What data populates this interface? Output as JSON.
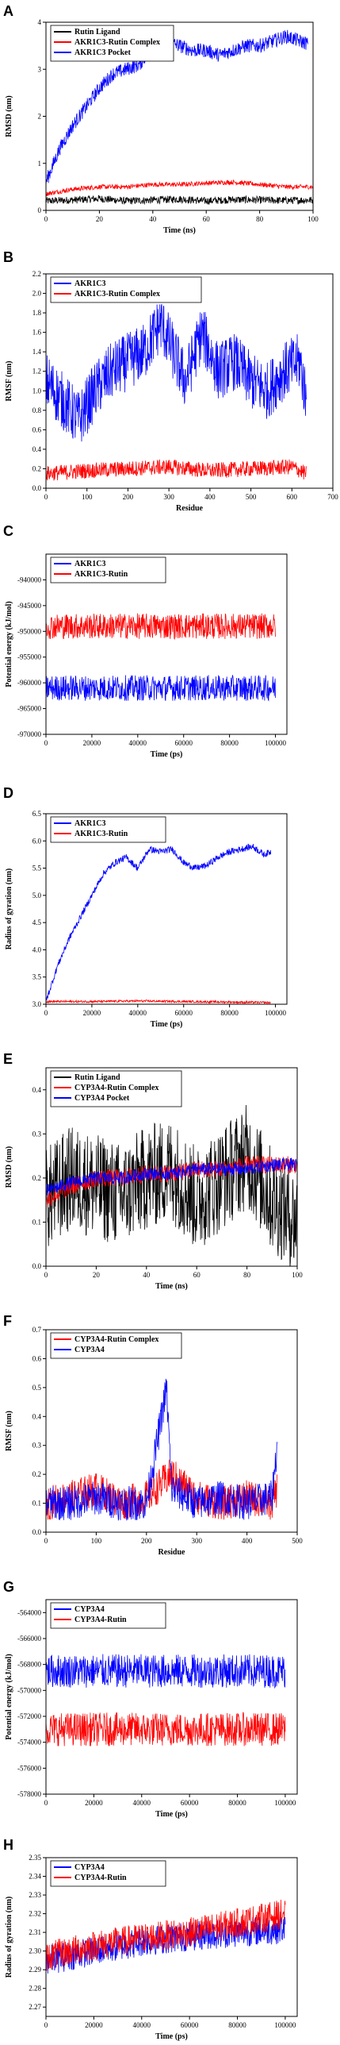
{
  "colors": {
    "black": "#000000",
    "red": "#ff0000",
    "blue": "#0000ff"
  },
  "chart_data": [
    {
      "panel": "A",
      "type": "line",
      "xlabel": "Time (ns)",
      "ylabel": "RMSD (nm)",
      "xlim": [
        0,
        100
      ],
      "ylim": [
        0,
        4
      ],
      "xticks": [
        0,
        20,
        40,
        60,
        80,
        100
      ],
      "yticks": [
        0,
        1,
        2,
        3,
        4
      ],
      "legend": [
        "Rutin Ligand",
        "AKR1C3-Rutin Complex",
        "AKR1C3 Pocket"
      ],
      "series": [
        {
          "name": "Rutin Ligand",
          "color": "#000000",
          "x": [
            0,
            10,
            20,
            30,
            40,
            50,
            60,
            70,
            80,
            90,
            100
          ],
          "y": [
            0.2,
            0.22,
            0.25,
            0.2,
            0.22,
            0.24,
            0.2,
            0.23,
            0.22,
            0.21,
            0.22
          ],
          "noise": 0.08
        },
        {
          "name": "AKR1C3-Rutin Complex",
          "color": "#ff0000",
          "x": [
            0,
            10,
            20,
            30,
            40,
            50,
            60,
            70,
            80,
            90,
            100
          ],
          "y": [
            0.35,
            0.45,
            0.5,
            0.5,
            0.55,
            0.55,
            0.58,
            0.6,
            0.55,
            0.5,
            0.5
          ],
          "noise": 0.05
        },
        {
          "name": "AKR1C3 Pocket",
          "color": "#0000ff",
          "x": [
            0,
            5,
            10,
            15,
            20,
            25,
            30,
            35,
            40,
            45,
            50,
            55,
            60,
            65,
            70,
            75,
            80,
            85,
            90,
            95,
            98
          ],
          "y": [
            0.6,
            1.3,
            1.8,
            2.2,
            2.6,
            2.9,
            3.0,
            3.1,
            3.5,
            3.6,
            3.5,
            3.4,
            3.4,
            3.3,
            3.4,
            3.5,
            3.5,
            3.6,
            3.7,
            3.6,
            3.55
          ],
          "noise": 0.15
        }
      ]
    },
    {
      "panel": "B",
      "type": "line",
      "xlabel": "Residue",
      "ylabel": "RMSF (nm)",
      "xlim": [
        0,
        700
      ],
      "ylim": [
        0,
        2.2
      ],
      "xticks": [
        0,
        100,
        200,
        300,
        400,
        500,
        600,
        700
      ],
      "yticks": [
        0.0,
        0.2,
        0.4,
        0.6,
        0.8,
        1.0,
        1.2,
        1.4,
        1.6,
        1.8,
        2.0,
        2.2
      ],
      "legend": [
        "AKR1C3",
        "AKR1C3-Rutin Complex"
      ],
      "series": [
        {
          "name": "AKR1C3",
          "color": "#0000ff",
          "x": [
            0,
            40,
            80,
            120,
            160,
            200,
            240,
            280,
            300,
            340,
            380,
            420,
            460,
            500,
            540,
            580,
            620,
            635
          ],
          "y": [
            1.1,
            0.9,
            0.7,
            1.0,
            1.2,
            1.3,
            1.4,
            1.7,
            1.5,
            1.1,
            1.6,
            1.2,
            1.3,
            1.1,
            1.0,
            1.2,
            1.3,
            0.9
          ],
          "noise": 0.3
        },
        {
          "name": "AKR1C3-Rutin Complex",
          "color": "#ff0000",
          "x": [
            0,
            100,
            200,
            300,
            400,
            500,
            600,
            635
          ],
          "y": [
            0.15,
            0.18,
            0.2,
            0.22,
            0.18,
            0.2,
            0.22,
            0.15
          ],
          "noise": 0.08
        }
      ]
    },
    {
      "panel": "C",
      "type": "line",
      "xlabel": "Time (ps)",
      "ylabel": "Potential energy (kJ/mol)",
      "xlim": [
        0,
        105000
      ],
      "ylim": [
        -970000,
        -935000
      ],
      "xticks": [
        0,
        20000,
        40000,
        60000,
        80000,
        100000
      ],
      "yticks": [
        -970000,
        -965000,
        -960000,
        -955000,
        -950000,
        -945000,
        -940000
      ],
      "legend": [
        "AKR1C3",
        "AKR1C3-Rutin"
      ],
      "series": [
        {
          "name": "AKR1C3",
          "color": "#0000ff",
          "x": [
            0,
            100000
          ],
          "y": [
            -961000,
            -961000
          ],
          "noise": 2500
        },
        {
          "name": "AKR1C3-Rutin",
          "color": "#ff0000",
          "x": [
            0,
            100000
          ],
          "y": [
            -949000,
            -949000
          ],
          "noise": 2500
        }
      ]
    },
    {
      "panel": "D",
      "type": "line",
      "xlabel": "Time (ps)",
      "ylabel": "Radius of gyration (nm)",
      "xlim": [
        0,
        105000
      ],
      "ylim": [
        3.0,
        6.5
      ],
      "xticks": [
        0,
        20000,
        40000,
        60000,
        80000,
        100000
      ],
      "yticks": [
        3.0,
        3.5,
        4.0,
        4.5,
        5.0,
        5.5,
        6.0,
        6.5
      ],
      "legend": [
        "AKR1C3",
        "AKR1C3-Rutin"
      ],
      "series": [
        {
          "name": "AKR1C3",
          "color": "#0000ff",
          "x": [
            0,
            5000,
            10000,
            15000,
            20000,
            25000,
            30000,
            35000,
            40000,
            45000,
            50000,
            55000,
            60000,
            65000,
            70000,
            75000,
            80000,
            85000,
            90000,
            95000,
            98000
          ],
          "y": [
            3.05,
            3.7,
            4.2,
            4.6,
            5.0,
            5.4,
            5.6,
            5.7,
            5.5,
            5.85,
            5.8,
            5.85,
            5.6,
            5.5,
            5.55,
            5.7,
            5.8,
            5.85,
            5.9,
            5.75,
            5.8
          ],
          "noise": 0.06
        },
        {
          "name": "AKR1C3-Rutin",
          "color": "#ff0000",
          "x": [
            0,
            20000,
            40000,
            60000,
            80000,
            98000
          ],
          "y": [
            3.05,
            3.05,
            3.06,
            3.05,
            3.04,
            3.03
          ],
          "noise": 0.02
        }
      ]
    },
    {
      "panel": "E",
      "type": "line",
      "xlabel": "Time (ns)",
      "ylabel": "RMSD (nm)",
      "xlim": [
        0,
        100
      ],
      "ylim": [
        0,
        0.45
      ],
      "xticks": [
        0,
        20,
        40,
        60,
        80,
        100
      ],
      "yticks": [
        0.0,
        0.1,
        0.2,
        0.3,
        0.4
      ],
      "legend": [
        "Rutin Ligand",
        "CYP3A4-Rutin Complex",
        "CYP3A4 Pocket"
      ],
      "series": [
        {
          "name": "Rutin Ligand",
          "color": "#000000",
          "x": [
            0,
            10,
            20,
            30,
            40,
            50,
            60,
            70,
            80,
            90,
            100
          ],
          "y": [
            0.15,
            0.2,
            0.18,
            0.16,
            0.2,
            0.22,
            0.15,
            0.2,
            0.25,
            0.15,
            0.1
          ],
          "noise": 0.12
        },
        {
          "name": "CYP3A4-Rutin Complex",
          "color": "#ff0000",
          "x": [
            0,
            10,
            20,
            30,
            40,
            50,
            60,
            70,
            80,
            90,
            100
          ],
          "y": [
            0.15,
            0.18,
            0.2,
            0.2,
            0.21,
            0.21,
            0.22,
            0.22,
            0.23,
            0.23,
            0.23
          ],
          "noise": 0.02
        },
        {
          "name": "CYP3A4 Pocket",
          "color": "#0000ff",
          "x": [
            0,
            10,
            20,
            30,
            40,
            50,
            60,
            70,
            80,
            90,
            100
          ],
          "y": [
            0.17,
            0.19,
            0.2,
            0.2,
            0.21,
            0.21,
            0.22,
            0.22,
            0.22,
            0.23,
            0.23
          ],
          "noise": 0.015
        }
      ]
    },
    {
      "panel": "F",
      "type": "line",
      "xlabel": "Residue",
      "ylabel": "RMSF (nm)",
      "xlim": [
        0,
        500
      ],
      "ylim": [
        0,
        0.7
      ],
      "xticks": [
        0,
        100,
        200,
        300,
        400,
        500
      ],
      "yticks": [
        0.0,
        0.1,
        0.2,
        0.3,
        0.4,
        0.5,
        0.6,
        0.7
      ],
      "legend": [
        "CYP3A4-Rutin Complex",
        "CYP3A4"
      ],
      "series": [
        {
          "name": "CYP3A4-Rutin Complex",
          "color": "#ff0000",
          "x": [
            0,
            50,
            100,
            150,
            200,
            250,
            300,
            350,
            400,
            450,
            460
          ],
          "y": [
            0.1,
            0.12,
            0.15,
            0.1,
            0.12,
            0.2,
            0.12,
            0.1,
            0.12,
            0.1,
            0.15
          ],
          "noise": 0.06
        },
        {
          "name": "CYP3A4",
          "color": "#0000ff",
          "x": [
            0,
            50,
            100,
            150,
            200,
            240,
            250,
            300,
            350,
            400,
            450,
            460
          ],
          "y": [
            0.1,
            0.1,
            0.12,
            0.1,
            0.1,
            0.5,
            0.15,
            0.1,
            0.12,
            0.1,
            0.12,
            0.3
          ],
          "noise": 0.06
        }
      ]
    },
    {
      "panel": "G",
      "type": "line",
      "xlabel": "Time (ps)",
      "ylabel": "Potential energy (kJ/mol)",
      "xlim": [
        0,
        105000
      ],
      "ylim": [
        -578000,
        -563000
      ],
      "xticks": [
        0,
        20000,
        40000,
        60000,
        80000,
        100000
      ],
      "yticks": [
        -578000,
        -576000,
        -574000,
        -572000,
        -570000,
        -568000,
        -566000,
        -564000
      ],
      "legend": [
        "CYP3A4",
        "CYP3A4-Rutin"
      ],
      "series": [
        {
          "name": "CYP3A4",
          "color": "#0000ff",
          "x": [
            0,
            100000
          ],
          "y": [
            -568500,
            -568500
          ],
          "noise": 1300
        },
        {
          "name": "CYP3A4-Rutin",
          "color": "#ff0000",
          "x": [
            0,
            100000
          ],
          "y": [
            -573000,
            -573000
          ],
          "noise": 1300
        }
      ]
    },
    {
      "panel": "H",
      "type": "line",
      "xlabel": "Time (ps)",
      "ylabel": "Radius of gyration (nm)",
      "xlim": [
        0,
        105000
      ],
      "ylim": [
        2.265,
        2.35
      ],
      "xticks": [
        0,
        20000,
        40000,
        60000,
        80000,
        100000
      ],
      "yticks": [
        2.27,
        2.28,
        2.29,
        2.3,
        2.31,
        2.32,
        2.33,
        2.34,
        2.35
      ],
      "legend": [
        "CYP3A4",
        "CYP3A4-Rutin"
      ],
      "series": [
        {
          "name": "CYP3A4",
          "color": "#0000ff",
          "x": [
            0,
            20000,
            40000,
            60000,
            80000,
            100000
          ],
          "y": [
            2.295,
            2.3,
            2.305,
            2.308,
            2.31,
            2.312
          ],
          "noise": 0.008
        },
        {
          "name": "CYP3A4-Rutin",
          "color": "#ff0000",
          "x": [
            0,
            20000,
            40000,
            60000,
            80000,
            100000
          ],
          "y": [
            2.297,
            2.303,
            2.307,
            2.31,
            2.315,
            2.32
          ],
          "noise": 0.008
        }
      ]
    }
  ]
}
